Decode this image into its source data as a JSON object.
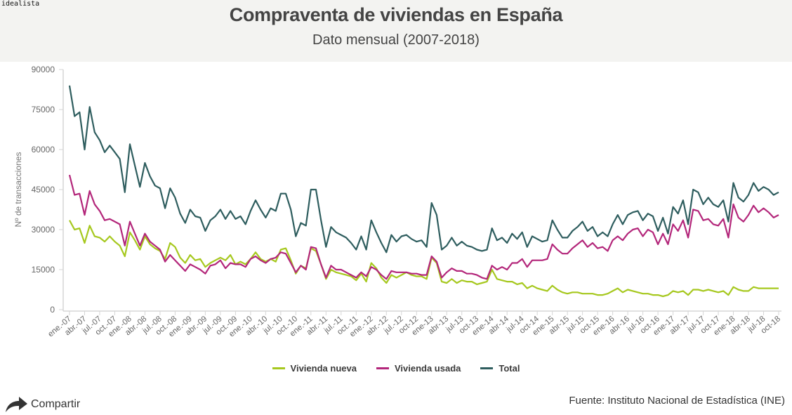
{
  "brand": "idealista",
  "header": {
    "title": "Compraventa de viviendas en España",
    "subtitle": "Dato mensual (2007-2018)"
  },
  "footer": {
    "share_label": "Compartir",
    "share_icon": "share-arrow-icon",
    "source": "Fuente: Instituto Nacional de Estadística (INE)"
  },
  "colors": {
    "nueva": "#a6c81e",
    "usada": "#b3267a",
    "total": "#2e5d5e"
  },
  "chart_data": {
    "type": "line",
    "title": "Compraventa de viviendas en España",
    "subtitle": "Dato mensual (2007-2018)",
    "xlabel": "",
    "ylabel": "Nº de transacciones",
    "ylim": [
      0,
      90000
    ],
    "yticks": [
      0,
      15000,
      30000,
      45000,
      60000,
      75000,
      90000
    ],
    "ytick_labels": [
      "0",
      "15000",
      "30000",
      "45000",
      "60000",
      "75000",
      "90000"
    ],
    "grid": false,
    "legend_position": "bottom",
    "x_start": "2007-01",
    "x_end": "2018-10",
    "x_tick_every_months": 3,
    "xtick_labels": [
      "ene.-07",
      "abr.-07",
      "jul.-07",
      "oct.-07",
      "ene.-08",
      "abr.-08",
      "jul.-08",
      "oct.-08",
      "ene.-09",
      "abr.-09",
      "jul.-09",
      "oct.-09",
      "ene.-10",
      "abr.-10",
      "jul.-10",
      "oct.-10",
      "ene.-11",
      "abr.-11",
      "jul.-11",
      "oct.-11",
      "ene.-12",
      "abr.-12",
      "jul.-12",
      "oct-12",
      "ene-13",
      "abr-13",
      "jul-13",
      "oct-13",
      "ene-14",
      "abr-14",
      "jul-14",
      "oct-14",
      "ene-15",
      "abr-15",
      "jul-15",
      "oct-15",
      "ene-16",
      "abr-16",
      "jul-16",
      "oct-16",
      "ene-17",
      "abr-17",
      "jul-17",
      "oct-17",
      "ene-18",
      "abr-18",
      "jul-18",
      "oct-18"
    ],
    "series": [
      {
        "name": "Vivienda nueva",
        "key": "nueva",
        "values": [
          33500,
          30000,
          30500,
          25000,
          31500,
          27500,
          27000,
          25500,
          27500,
          25500,
          24000,
          20000,
          29000,
          26000,
          22500,
          27500,
          24500,
          23000,
          22000,
          19000,
          25000,
          23500,
          19500,
          17500,
          20500,
          18500,
          19000,
          16000,
          17500,
          18500,
          19500,
          18500,
          20500,
          17000,
          18000,
          17000,
          19000,
          21500,
          19000,
          18000,
          19000,
          18000,
          22500,
          23000,
          18500,
          13500,
          16500,
          15500,
          23000,
          22000,
          17000,
          11500,
          15000,
          14000,
          13500,
          13000,
          12500,
          11000,
          13500,
          10500,
          17500,
          15500,
          12000,
          10000,
          13000,
          12000,
          13000,
          14000,
          13000,
          12500,
          12500,
          11500,
          19500,
          17500,
          10500,
          10000,
          11500,
          10000,
          11000,
          10500,
          10500,
          9500,
          10000,
          10500,
          15000,
          11500,
          11000,
          10500,
          10500,
          9500,
          10000,
          8000,
          9000,
          8000,
          7500,
          7000,
          9000,
          7500,
          6500,
          6000,
          6500,
          6500,
          6000,
          6000,
          6000,
          5500,
          5500,
          6000,
          7000,
          8000,
          6500,
          7500,
          7000,
          6500,
          6000,
          6000,
          5500,
          5500,
          5000,
          5500,
          7000,
          6500,
          7000,
          5500,
          7500,
          7500,
          7000,
          7500,
          7000,
          6500,
          7000,
          5500,
          8500,
          7500,
          7000,
          7000,
          8500,
          8000,
          8000,
          8000,
          8000,
          8000
        ]
      },
      {
        "name": "Vivienda usada",
        "key": "usada",
        "values": [
          50500,
          43000,
          43500,
          35500,
          44500,
          39500,
          37000,
          33500,
          34000,
          33000,
          32000,
          24000,
          33000,
          28500,
          24000,
          28500,
          25500,
          24000,
          22500,
          18000,
          20500,
          18500,
          16500,
          14500,
          17000,
          16000,
          15000,
          13500,
          16500,
          17000,
          18500,
          15500,
          17500,
          17000,
          17000,
          16000,
          19000,
          20000,
          18500,
          17500,
          19000,
          19500,
          21500,
          21000,
          17500,
          14000,
          16500,
          15000,
          23500,
          23000,
          17000,
          12000,
          16500,
          15000,
          15000,
          14000,
          13000,
          12000,
          14000,
          12500,
          16000,
          15000,
          13000,
          11500,
          14500,
          14000,
          14000,
          14000,
          13500,
          13500,
          13000,
          13000,
          20000,
          18000,
          12000,
          14000,
          15500,
          14500,
          14500,
          13500,
          13500,
          13000,
          12000,
          11500,
          16500,
          15000,
          16000,
          15000,
          17500,
          17500,
          19000,
          16000,
          18500,
          18500,
          18500,
          19000,
          24500,
          22500,
          21000,
          21000,
          23000,
          24500,
          26000,
          23500,
          25000,
          23000,
          23500,
          22000,
          26000,
          27500,
          26000,
          28500,
          30000,
          30500,
          27500,
          30000,
          29000,
          24500,
          28500,
          24500,
          32000,
          29500,
          33500,
          27000,
          37500,
          37000,
          33500,
          34000,
          32000,
          31500,
          34000,
          27000,
          39500,
          34500,
          33000,
          35500,
          39000,
          36500,
          38000,
          36500,
          34500,
          35500
        ]
      },
      {
        "name": "Total",
        "key": "total",
        "values": [
          84000,
          72500,
          74000,
          60000,
          76000,
          66500,
          63500,
          59000,
          61500,
          59000,
          56500,
          44000,
          62000,
          54000,
          46000,
          55000,
          50000,
          46500,
          45500,
          38000,
          45500,
          42000,
          36000,
          32500,
          37500,
          35000,
          34500,
          29500,
          33500,
          35000,
          37500,
          34000,
          37000,
          34000,
          35000,
          32000,
          37000,
          41000,
          37500,
          34500,
          38000,
          37000,
          43500,
          43500,
          37500,
          27500,
          32500,
          31500,
          45000,
          45000,
          33500,
          23500,
          31000,
          29000,
          28000,
          27000,
          25000,
          22500,
          27500,
          22500,
          33500,
          29000,
          25000,
          21500,
          28000,
          25500,
          27500,
          28000,
          26500,
          25500,
          26000,
          23500,
          40000,
          35500,
          22500,
          24000,
          27000,
          24000,
          25500,
          24000,
          23500,
          22500,
          22000,
          22500,
          30500,
          26000,
          27000,
          25000,
          28500,
          26500,
          29000,
          23500,
          27500,
          26500,
          25500,
          26000,
          33500,
          30000,
          27000,
          27000,
          29500,
          31000,
          33000,
          29500,
          31000,
          27500,
          29000,
          27500,
          32000,
          35500,
          32000,
          35500,
          36500,
          37000,
          33500,
          36000,
          35000,
          29500,
          34500,
          28500,
          38500,
          36000,
          41000,
          32000,
          45000,
          44000,
          39500,
          42000,
          39500,
          38500,
          41000,
          33000,
          47500,
          42000,
          40500,
          43000,
          47500,
          44500,
          46000,
          45000,
          43000,
          44000
        ]
      }
    ]
  }
}
